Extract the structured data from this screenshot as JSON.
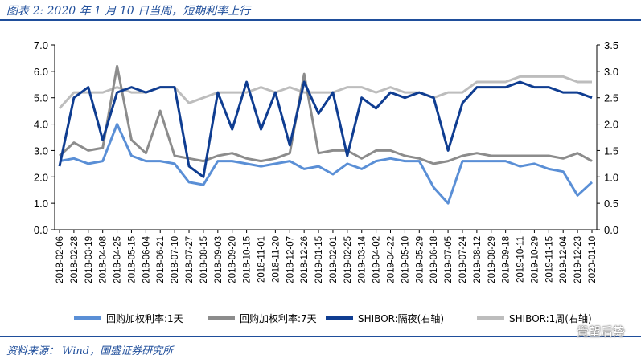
{
  "header": {
    "title": "图表 2:  2020 年 1 月 10 日当周，短期利率上行"
  },
  "footer": {
    "source": "资料来源： Wind，国盛证券研究所",
    "watermark": "覺望后势"
  },
  "chart_data": {
    "type": "line",
    "x": [
      "2018-02-06",
      "2018-02-28",
      "2018-03-19",
      "2018-04-08",
      "2018-04-25",
      "2018-05-15",
      "2018-06-04",
      "2018-06-21",
      "2018-07-10",
      "2018-07-27",
      "2018-08-15",
      "2018-09-03",
      "2018-09-20",
      "2018-10-15",
      "2018-11-01",
      "2018-11-20",
      "2018-12-07",
      "2018-12-26",
      "2019-01-15",
      "2019-02-01",
      "2019-02-25",
      "2019-03-14",
      "2019-04-02",
      "2019-04-22",
      "2019-05-10",
      "2019-05-29",
      "2019-06-18",
      "2019-07-05",
      "2019-07-24",
      "2019-08-12",
      "2019-08-29",
      "2019-09-18",
      "2019-10-11",
      "2019-10-29",
      "2019-11-15",
      "2019-12-04",
      "2019-12-23",
      "2020-01-10"
    ],
    "y_left": {
      "ylim": [
        0,
        7
      ],
      "ticks": [
        "7.0",
        "6.0",
        "5.0",
        "4.0",
        "3.0",
        "2.0",
        "1.0",
        "0.0"
      ]
    },
    "y_right": {
      "ylim": [
        0,
        3.5
      ],
      "ticks": [
        "3.5",
        "3.0",
        "2.5",
        "2.0",
        "1.5",
        "1.0",
        "0.5",
        "0.0"
      ]
    },
    "series": [
      {
        "name": "回购加权利率:1天",
        "axis": "left",
        "color": "#5a8fd6",
        "values": [
          2.6,
          2.7,
          2.5,
          2.6,
          4.0,
          2.8,
          2.6,
          2.6,
          2.5,
          1.8,
          1.7,
          2.6,
          2.6,
          2.5,
          2.4,
          2.5,
          2.6,
          2.3,
          2.4,
          2.1,
          2.5,
          2.3,
          2.6,
          2.7,
          2.6,
          2.6,
          1.6,
          1.0,
          2.6,
          2.6,
          2.6,
          2.6,
          2.4,
          2.5,
          2.3,
          2.2,
          1.3,
          1.8
        ]
      },
      {
        "name": "回购加权利率:7天",
        "axis": "left",
        "color": "#8c8c8c",
        "values": [
          2.8,
          3.3,
          3.0,
          3.1,
          6.2,
          3.4,
          2.9,
          4.5,
          2.8,
          2.7,
          2.6,
          2.8,
          2.9,
          2.7,
          2.6,
          2.7,
          2.9,
          5.9,
          2.9,
          3.0,
          3.0,
          2.7,
          3.0,
          3.0,
          2.8,
          2.7,
          2.5,
          2.6,
          2.8,
          2.9,
          2.8,
          2.8,
          2.8,
          2.8,
          2.8,
          2.7,
          2.9,
          2.6
        ]
      },
      {
        "name": "SHIBOR:隔夜(右轴)",
        "axis": "right",
        "color": "#0f3d91",
        "values": [
          1.2,
          2.5,
          2.7,
          1.7,
          2.6,
          2.7,
          2.6,
          2.7,
          2.7,
          1.2,
          1.0,
          2.6,
          1.9,
          2.8,
          1.9,
          2.6,
          1.6,
          2.8,
          2.2,
          2.6,
          1.4,
          2.5,
          2.3,
          2.6,
          2.5,
          2.6,
          2.5,
          1.5,
          2.4,
          2.7,
          2.7,
          2.7,
          2.8,
          2.7,
          2.7,
          2.6,
          2.6,
          2.5
        ]
      },
      {
        "name": "SHIBOR:1周(右轴)",
        "axis": "right",
        "color": "#bdbdbd",
        "values": [
          2.3,
          2.6,
          2.6,
          2.6,
          2.7,
          2.6,
          2.6,
          2.7,
          2.7,
          2.4,
          2.5,
          2.6,
          2.6,
          2.6,
          2.7,
          2.6,
          2.7,
          2.6,
          2.6,
          2.6,
          2.7,
          2.7,
          2.6,
          2.7,
          2.6,
          2.6,
          2.5,
          2.6,
          2.6,
          2.8,
          2.8,
          2.8,
          2.9,
          2.9,
          2.9,
          2.9,
          2.8,
          2.8
        ]
      }
    ],
    "legend_position": "bottom",
    "grid": false
  }
}
